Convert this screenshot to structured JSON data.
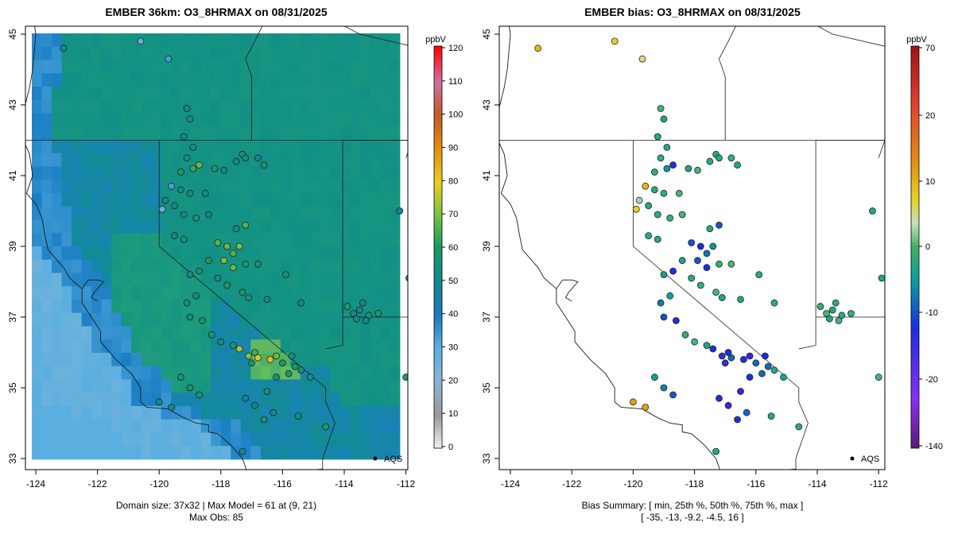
{
  "left_panel": {
    "title": "EMBER 36km: O3_8HRMAX on 08/31/2025",
    "footer_line1": "Domain size: 37x32 | Max Model = 61 at (9, 21)",
    "footer_line2": "Max Obs: 85",
    "colorbar_unit": "ppbV",
    "colorbar_ticks": [
      "0",
      "10",
      "20",
      "30",
      "40",
      "50",
      "60",
      "70",
      "80",
      "90",
      "100",
      "110",
      "120"
    ],
    "network_label": "AQS"
  },
  "right_panel": {
    "title": "EMBER bias: O3_8HRMAX on 08/31/2025",
    "footer_line1": "Bias Summary: [ min, 25th %, 50th %, 75th %, max ]",
    "footer_line2": "[ -35,   -13,   -9.2,   -4.5,   16 ]",
    "colorbar_unit": "ppbV",
    "colorbar_ticks": [
      "70",
      "20",
      "10",
      "0",
      "-10",
      "-20",
      "-140"
    ],
    "network_label": "AQS"
  },
  "axes": {
    "lon_ticks": [
      "-124",
      "-122",
      "-120",
      "-118",
      "-116",
      "-114",
      "-112"
    ],
    "lat_ticks": [
      "33",
      "35",
      "37",
      "39",
      "41",
      "43",
      "45"
    ]
  },
  "colors": {
    "ocean_cell": "#5aaee0",
    "offshore_grey": "#94aab8",
    "land_blue": "#1b7fc4",
    "land_teal": "#108e86",
    "interior_green": "#22a07a"
  }
}
